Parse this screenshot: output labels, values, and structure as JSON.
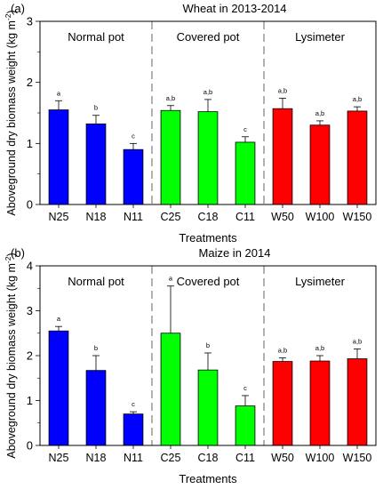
{
  "chart_data": [
    {
      "type": "bar",
      "panel_label": "(a)",
      "title": "Wheat in 2013-2014",
      "xlabel": "Treatments",
      "ylabel": "Aboveground dry biomass weight (kg m",
      "ylabel_sup": "-2",
      "ylabel_close": ")",
      "ylim": [
        0,
        3
      ],
      "yticks": [
        0,
        1,
        2,
        3
      ],
      "categories": [
        "N25",
        "N18",
        "N11",
        "C25",
        "C18",
        "C11",
        "W50",
        "W100",
        "W150"
      ],
      "values": [
        1.55,
        1.32,
        0.9,
        1.54,
        1.52,
        1.02,
        1.57,
        1.3,
        1.53
      ],
      "errors": [
        0.15,
        0.14,
        0.1,
        0.08,
        0.2,
        0.09,
        0.17,
        0.07,
        0.07
      ],
      "letters": [
        "a",
        "b",
        "c",
        "a,b",
        "a,b",
        "c",
        "a,b",
        "a,b",
        "a,b"
      ],
      "groups": [
        {
          "label": "Normal pot",
          "color": "#0000ff",
          "indices": [
            0,
            1,
            2
          ]
        },
        {
          "label": "Covered pot",
          "color": "#00ff00",
          "indices": [
            3,
            4,
            5
          ]
        },
        {
          "label": "Lysimeter",
          "color": "#ff0000",
          "indices": [
            6,
            7,
            8
          ]
        }
      ],
      "grid": false
    },
    {
      "type": "bar",
      "panel_label": "(b)",
      "title": "Maize in 2014",
      "xlabel": "Treatments",
      "ylabel": "Aboveground dry biomass weight (kg m",
      "ylabel_sup": "-2",
      "ylabel_close": ")",
      "ylim": [
        0,
        4
      ],
      "yticks": [
        0,
        1,
        2,
        3,
        4
      ],
      "categories": [
        "N25",
        "N18",
        "N11",
        "C25",
        "C18",
        "C11",
        "W50",
        "W100",
        "W150"
      ],
      "values": [
        2.55,
        1.67,
        0.7,
        2.5,
        1.68,
        0.88,
        1.87,
        1.88,
        1.93
      ],
      "errors": [
        0.1,
        0.33,
        0.05,
        1.05,
        0.38,
        0.23,
        0.08,
        0.12,
        0.22
      ],
      "letters": [
        "a",
        "b",
        "c",
        "a",
        "b",
        "c",
        "a,b",
        "a,b",
        "a,b"
      ],
      "groups": [
        {
          "label": "Normal pot",
          "color": "#0000ff",
          "indices": [
            0,
            1,
            2
          ]
        },
        {
          "label": "Covered pot",
          "color": "#00ff00",
          "indices": [
            3,
            4,
            5
          ]
        },
        {
          "label": "Lysimeter",
          "color": "#ff0000",
          "indices": [
            6,
            7,
            8
          ]
        }
      ],
      "grid": false
    }
  ]
}
